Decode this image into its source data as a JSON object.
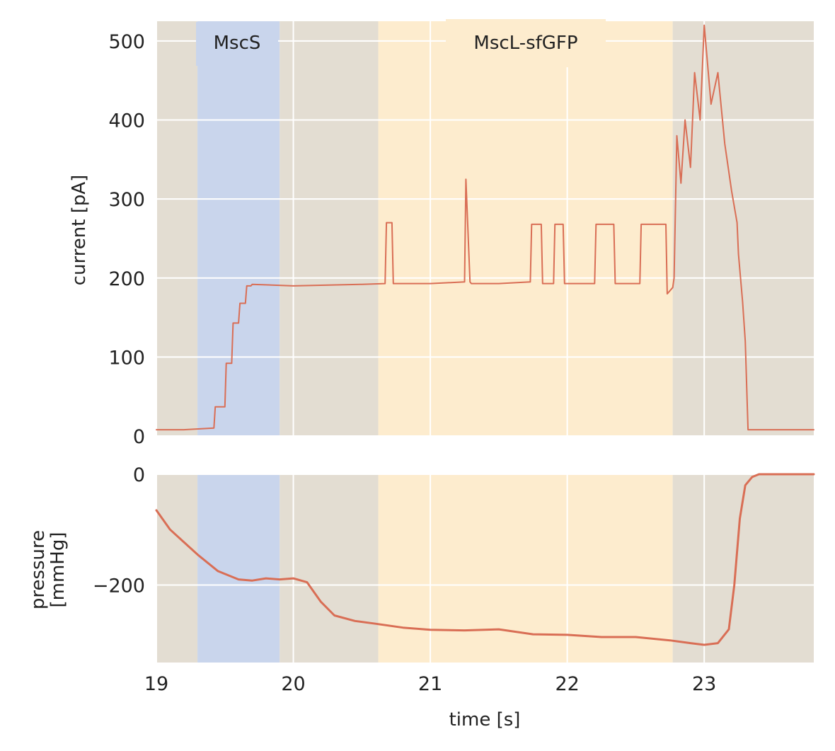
{
  "chart_data": [
    {
      "type": "line",
      "ylabel": "current [pA]",
      "xlim": [
        19,
        23.8
      ],
      "ylim": [
        0,
        525
      ],
      "yticks": [
        "0",
        "100",
        "200",
        "300",
        "400",
        "500"
      ],
      "ytick_values": [
        0,
        100,
        200,
        300,
        400,
        500
      ],
      "grid": true,
      "series": [
        {
          "color": "#d96e55",
          "x": [
            19.0,
            19.2,
            19.42,
            19.43,
            19.5,
            19.51,
            19.55,
            19.56,
            19.6,
            19.61,
            19.65,
            19.66,
            19.69,
            19.7,
            20.0,
            20.5,
            20.67,
            20.68,
            20.72,
            20.73,
            21.0,
            21.25,
            21.26,
            21.29,
            21.3,
            21.5,
            21.73,
            21.74,
            21.81,
            21.82,
            21.9,
            21.91,
            21.97,
            21.98,
            22.2,
            22.21,
            22.34,
            22.35,
            22.53,
            22.54,
            22.72,
            22.73,
            22.77,
            22.78,
            22.8,
            22.83,
            22.86,
            22.9,
            22.93,
            22.97,
            23.0,
            23.05,
            23.1,
            23.15,
            23.2,
            23.24,
            23.25,
            23.28,
            23.3,
            23.32,
            23.5,
            23.8
          ],
          "y": [
            8,
            8,
            10,
            37,
            37,
            92,
            92,
            143,
            143,
            168,
            168,
            190,
            190,
            192,
            190,
            192,
            193,
            270,
            270,
            193,
            193,
            195,
            325,
            195,
            193,
            193,
            195,
            268,
            268,
            193,
            193,
            268,
            268,
            193,
            193,
            268,
            268,
            193,
            193,
            268,
            268,
            180,
            188,
            200,
            380,
            320,
            400,
            340,
            460,
            400,
            520,
            420,
            460,
            370,
            310,
            270,
            230,
            170,
            120,
            8,
            8,
            8
          ]
        }
      ]
    },
    {
      "type": "line",
      "ylabel": "pressure [mmHg]",
      "xlabel": "time [s]",
      "xlim": [
        19,
        23.8
      ],
      "ylim": [
        -340,
        0
      ],
      "xticks": [
        "19",
        "20",
        "21",
        "22",
        "23"
      ],
      "xtick_values": [
        19,
        20,
        21,
        22,
        23
      ],
      "yticks": [
        "0",
        "−200"
      ],
      "ytick_values": [
        0,
        -200
      ],
      "grid": true,
      "series": [
        {
          "color": "#d96e55",
          "x": [
            19.0,
            19.1,
            19.3,
            19.45,
            19.6,
            19.7,
            19.8,
            19.9,
            20.0,
            20.1,
            20.2,
            20.3,
            20.45,
            20.6,
            20.8,
            21.0,
            21.25,
            21.5,
            21.75,
            22.0,
            22.25,
            22.5,
            22.75,
            22.9,
            23.0,
            23.1,
            23.18,
            23.22,
            23.26,
            23.3,
            23.35,
            23.4,
            23.5,
            23.6,
            23.8
          ],
          "y": [
            -65,
            -100,
            -145,
            -175,
            -190,
            -192,
            -188,
            -190,
            -188,
            -195,
            -230,
            -255,
            -265,
            -270,
            -277,
            -281,
            -282,
            -280,
            -289,
            -290,
            -294,
            -294,
            -300,
            -305,
            -308,
            -305,
            -280,
            -200,
            -80,
            -20,
            -5,
            0,
            0,
            0,
            0
          ]
        }
      ]
    }
  ],
  "regions": [
    {
      "label": "",
      "x0": 19.0,
      "x1": 19.3,
      "color": "#e3ddd2"
    },
    {
      "label": "MscS",
      "x0": 19.3,
      "x1": 19.9,
      "color": "#c9d5ec"
    },
    {
      "label": "",
      "x0": 19.9,
      "x1": 20.62,
      "color": "#e3ddd2"
    },
    {
      "label": "MscL-sfGFP",
      "x0": 20.62,
      "x1": 22.77,
      "color": "#fdecce"
    },
    {
      "label": "",
      "x0": 22.77,
      "x1": 23.8,
      "color": "#e3ddd2"
    }
  ],
  "labels": {
    "top_ylabel": "current [pA]",
    "bottom_ylabel_line1": "pressure",
    "bottom_ylabel_line2": "[mmHg]",
    "xlabel": "time [s]",
    "mscs": "MscS",
    "mscl": "MscL-sfGFP"
  }
}
